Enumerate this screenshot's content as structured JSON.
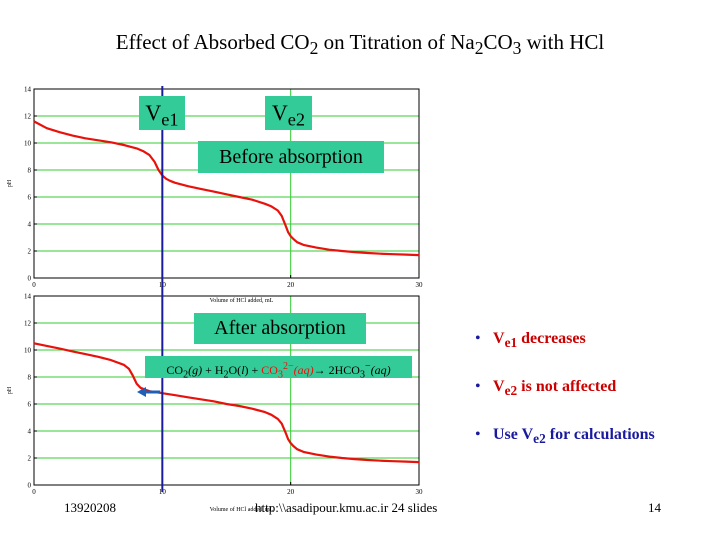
{
  "slide": {
    "title_a": "Effect of Absorbed CO",
    "title_sub1": "2",
    "title_b": " on Titration of Na",
    "title_sub2": "2",
    "title_c": "CO",
    "title_sub3": "3",
    "title_d": " with HCl",
    "ve1_main": "V",
    "ve1_sub": "e1",
    "ve2_main": "V",
    "ve2_sub": "e2",
    "before_label": "Before absorption",
    "after_label": "After absorption",
    "equation": {
      "p1": "CO",
      "p1_sub": "2",
      "p1_state": "(g)",
      "plus1": " + H",
      "p2_sub": "2",
      "p2_o": "O(",
      "p2_state": "l",
      "p2_close": ") + ",
      "p3": "CO",
      "p3_sub": "3",
      "p3_sup": "2−",
      "p3_state": "(aq)",
      "arrow": "→",
      "p4": " 2HCO",
      "p4_sub": "3",
      "p4_sup": "−",
      "p4_state": "(aq)"
    },
    "bullets": [
      {
        "main": "V",
        "sub": "e1",
        "rest": " decreases",
        "color": "#cc0000"
      },
      {
        "main": "V",
        "sub": "e2",
        "rest": " is not affected",
        "color": "#cc0000"
      },
      {
        "pre": "Use V",
        "sub": "e2",
        "rest": " for calculations",
        "color": "#1a1a9e"
      }
    ],
    "footer": {
      "date": "13920208",
      "url": "http:\\\\asadipour.kmu.ac.ir   24 slides",
      "page": "14"
    },
    "colors": {
      "curve": "#e8120c",
      "grid": "#33cc33",
      "marker_line": "#1a1a9e",
      "label_box": "#33cc99",
      "arrow": "#1f5fb5"
    }
  },
  "chart_data": [
    {
      "type": "line",
      "title": "",
      "xlabel": "Volume of HCl added, mL",
      "ylabel": "pH",
      "xlim": [
        0,
        30
      ],
      "ylim": [
        0,
        14
      ],
      "xticks": [
        0,
        10,
        20,
        30
      ],
      "yticks": [
        0,
        2,
        4,
        6,
        8,
        10,
        12,
        14
      ],
      "grid": true,
      "marker_x": 10,
      "series": [
        {
          "x": [
            0,
            1,
            2,
            3,
            4,
            5,
            6,
            7,
            8,
            8.5,
            9,
            9.4,
            9.7,
            10,
            10.3,
            10.6,
            11,
            12,
            13,
            14,
            15,
            16,
            17,
            18,
            18.5,
            19,
            19.3,
            19.6,
            19.8,
            20,
            20.2,
            20.5,
            21,
            22,
            23,
            24,
            25,
            26,
            27,
            28,
            29,
            30
          ],
          "y": [
            11.6,
            11.1,
            10.8,
            10.55,
            10.35,
            10.2,
            10.05,
            9.85,
            9.6,
            9.4,
            9.1,
            8.6,
            8.0,
            7.6,
            7.35,
            7.2,
            7.05,
            6.8,
            6.6,
            6.4,
            6.2,
            6.0,
            5.8,
            5.5,
            5.3,
            5.0,
            4.6,
            3.9,
            3.4,
            3.1,
            2.9,
            2.65,
            2.45,
            2.25,
            2.1,
            2.0,
            1.92,
            1.85,
            1.8,
            1.76,
            1.73,
            1.7
          ]
        }
      ]
    },
    {
      "type": "line",
      "title": "",
      "xlabel": "Volume of HCl added, mL",
      "ylabel": "pH",
      "xlim": [
        0,
        30
      ],
      "ylim": [
        0,
        14
      ],
      "xticks": [
        0,
        10,
        20,
        30
      ],
      "yticks": [
        0,
        2,
        4,
        6,
        8,
        10,
        12,
        14
      ],
      "grid": true,
      "marker_x": 10,
      "series": [
        {
          "x": [
            0,
            1,
            2,
            3,
            4,
            5,
            6,
            7,
            7.4,
            7.7,
            8,
            8.3,
            8.7,
            9,
            10,
            11,
            12,
            13,
            14,
            15,
            16,
            17,
            18,
            18.5,
            19,
            19.3,
            19.6,
            19.8,
            20,
            20.2,
            20.5,
            21,
            22,
            23,
            24,
            25,
            26,
            27,
            28,
            29,
            30
          ],
          "y": [
            10.5,
            10.3,
            10.1,
            9.9,
            9.7,
            9.5,
            9.25,
            8.9,
            8.6,
            8.1,
            7.5,
            7.2,
            7.05,
            6.95,
            6.8,
            6.65,
            6.5,
            6.35,
            6.2,
            6.0,
            5.85,
            5.65,
            5.4,
            5.2,
            4.9,
            4.55,
            3.9,
            3.4,
            3.1,
            2.9,
            2.65,
            2.45,
            2.25,
            2.1,
            2.0,
            1.92,
            1.85,
            1.8,
            1.76,
            1.73,
            1.7
          ]
        }
      ]
    }
  ]
}
